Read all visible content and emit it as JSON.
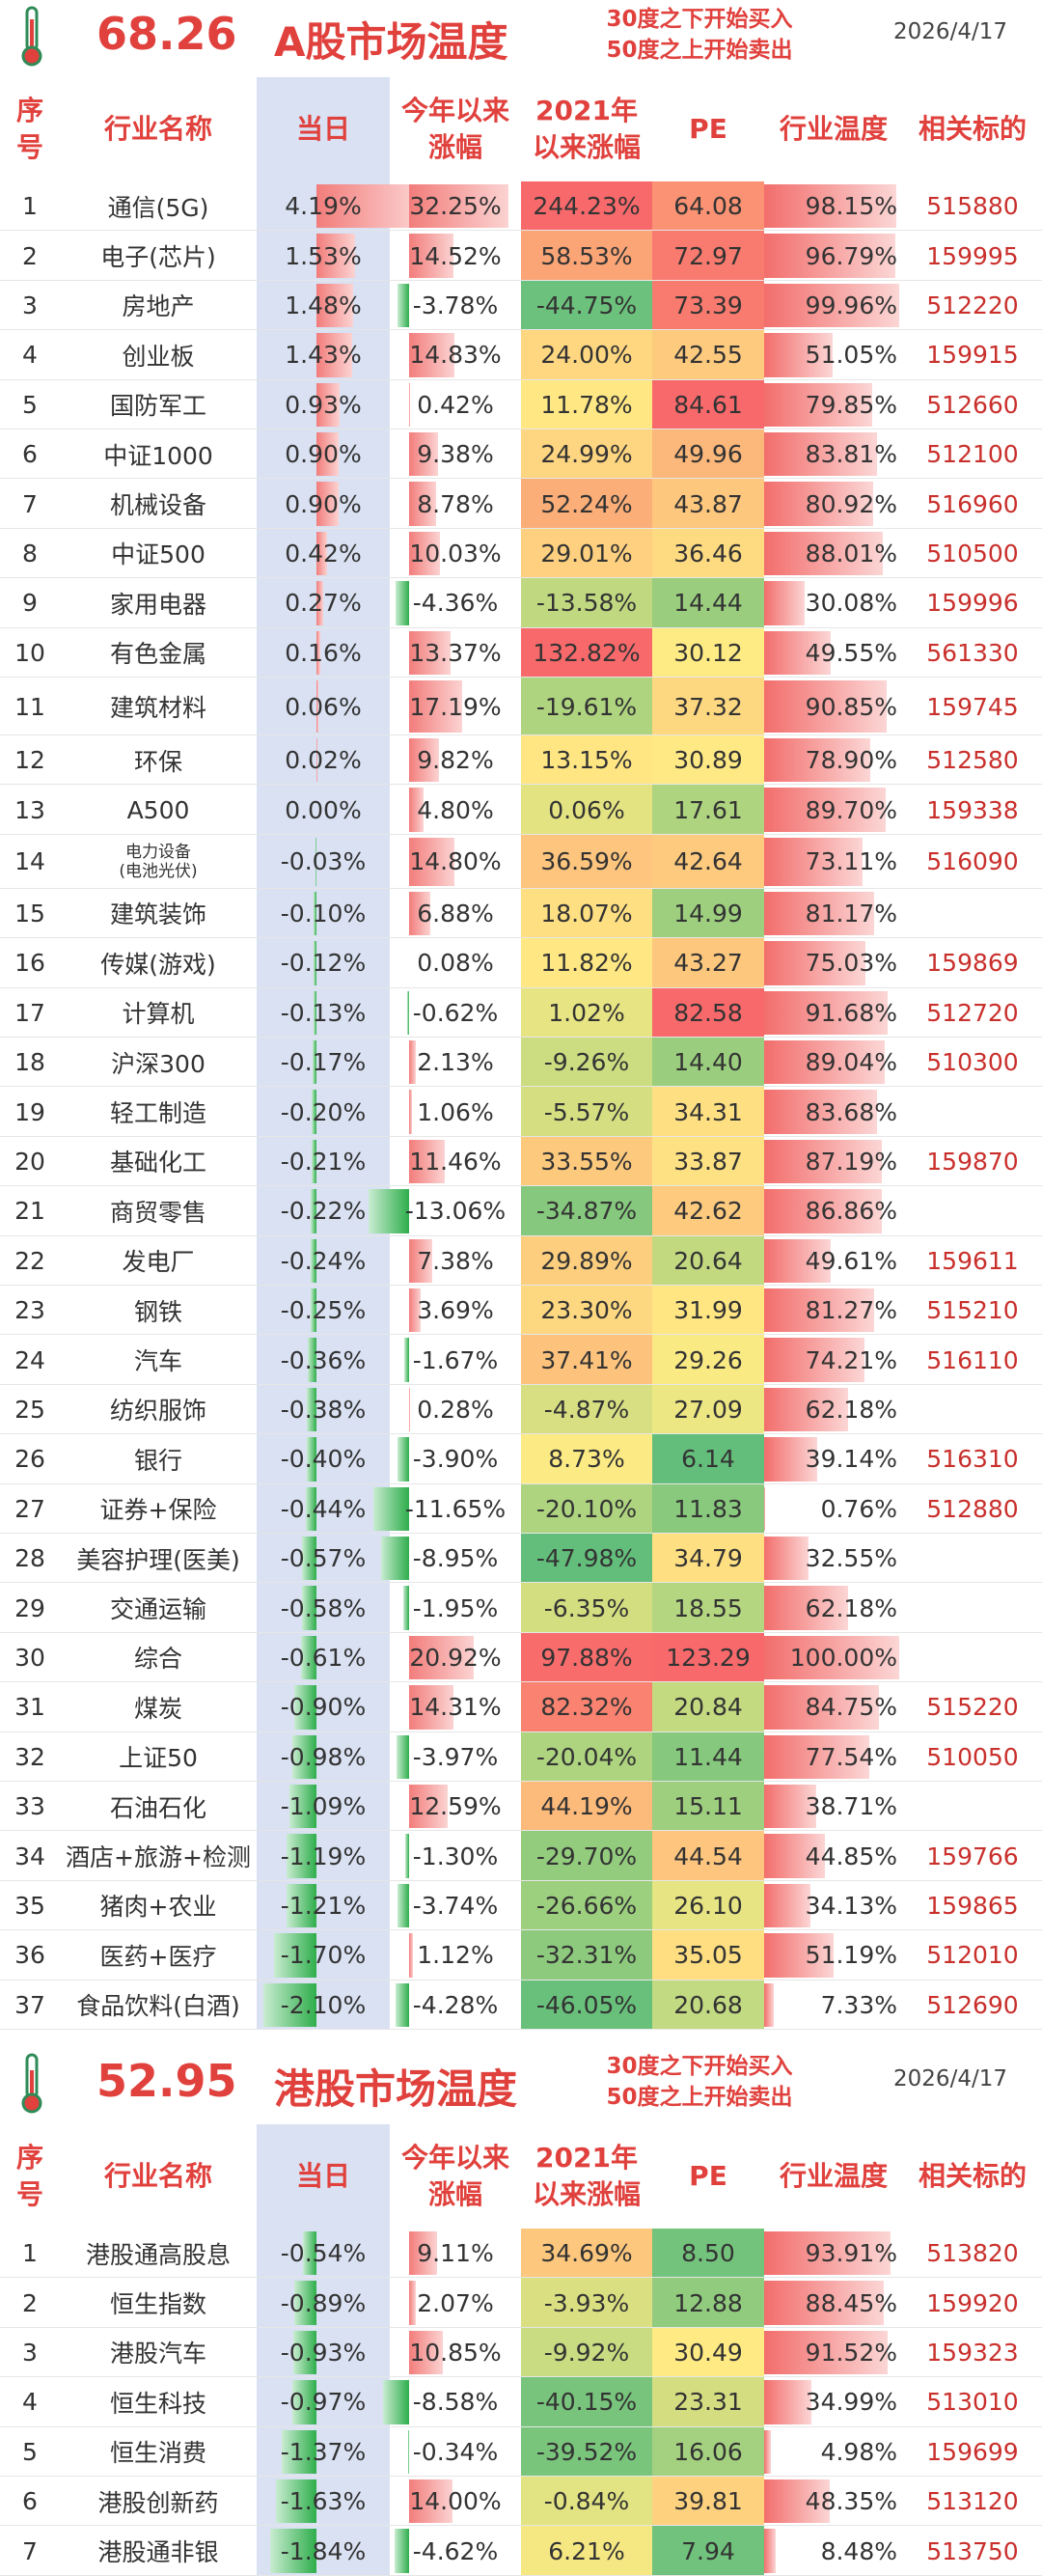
{
  "colors": {
    "accent": "#e0413d",
    "positive_bar": "#f08a88",
    "negative_bar": "#3cae4f",
    "code": "#c9302c",
    "today_col_bg": "#d9e1f2"
  },
  "headers": {
    "idx": "序号",
    "name": "行业名称",
    "today": "当日",
    "ytd": "今年以来涨幅",
    "since2021": "2021年以来涨幅",
    "pe": "PE",
    "temp": "行业温度",
    "code": "相关标的"
  },
  "a_market": {
    "score": "68.26",
    "title": "A股市场温度",
    "note_line1": "30度之下开始买入",
    "note_line2": "50度之上开始卖出",
    "date": "2026/4/17",
    "rows": [
      {
        "idx": "1",
        "name": "通信(5G)",
        "today": "4.19%",
        "ytd": "32.25%",
        "since2021": "244.23%",
        "pe": "64.08",
        "temp": "98.15%",
        "code": "515880",
        "today_v": 4.19,
        "ytd_v": 32.25,
        "s21_v": 244.23,
        "pe_v": 64.08,
        "temp_v": 98.15
      },
      {
        "idx": "2",
        "name": "电子(芯片)",
        "today": "1.53%",
        "ytd": "14.52%",
        "since2021": "58.53%",
        "pe": "72.97",
        "temp": "96.79%",
        "code": "159995",
        "today_v": 1.53,
        "ytd_v": 14.52,
        "s21_v": 58.53,
        "pe_v": 72.97,
        "temp_v": 96.79
      },
      {
        "idx": "3",
        "name": "房地产",
        "today": "1.48%",
        "ytd": "-3.78%",
        "since2021": "-44.75%",
        "pe": "73.39",
        "temp": "99.96%",
        "code": "512220",
        "today_v": 1.48,
        "ytd_v": -3.78,
        "s21_v": -44.75,
        "pe_v": 73.39,
        "temp_v": 99.96
      },
      {
        "idx": "4",
        "name": "创业板",
        "today": "1.43%",
        "ytd": "14.83%",
        "since2021": "24.00%",
        "pe": "42.55",
        "temp": "51.05%",
        "code": "159915",
        "today_v": 1.43,
        "ytd_v": 14.83,
        "s21_v": 24.0,
        "pe_v": 42.55,
        "temp_v": 51.05
      },
      {
        "idx": "5",
        "name": "国防军工",
        "today": "0.93%",
        "ytd": "0.42%",
        "since2021": "11.78%",
        "pe": "84.61",
        "temp": "79.85%",
        "code": "512660",
        "today_v": 0.93,
        "ytd_v": 0.42,
        "s21_v": 11.78,
        "pe_v": 84.61,
        "temp_v": 79.85
      },
      {
        "idx": "6",
        "name": "中证1000",
        "today": "0.90%",
        "ytd": "9.38%",
        "since2021": "24.99%",
        "pe": "49.96",
        "temp": "83.81%",
        "code": "512100",
        "today_v": 0.9,
        "ytd_v": 9.38,
        "s21_v": 24.99,
        "pe_v": 49.96,
        "temp_v": 83.81
      },
      {
        "idx": "7",
        "name": "机械设备",
        "today": "0.90%",
        "ytd": "8.78%",
        "since2021": "52.24%",
        "pe": "43.87",
        "temp": "80.92%",
        "code": "516960",
        "today_v": 0.9,
        "ytd_v": 8.78,
        "s21_v": 52.24,
        "pe_v": 43.87,
        "temp_v": 80.92
      },
      {
        "idx": "8",
        "name": "中证500",
        "today": "0.42%",
        "ytd": "10.03%",
        "since2021": "29.01%",
        "pe": "36.46",
        "temp": "88.01%",
        "code": "510500",
        "today_v": 0.42,
        "ytd_v": 10.03,
        "s21_v": 29.01,
        "pe_v": 36.46,
        "temp_v": 88.01
      },
      {
        "idx": "9",
        "name": "家用电器",
        "today": "0.27%",
        "ytd": "-4.36%",
        "since2021": "-13.58%",
        "pe": "14.44",
        "temp": "30.08%",
        "code": "159996",
        "today_v": 0.27,
        "ytd_v": -4.36,
        "s21_v": -13.58,
        "pe_v": 14.44,
        "temp_v": 30.08
      },
      {
        "idx": "10",
        "name": "有色金属",
        "today": "0.16%",
        "ytd": "13.37%",
        "since2021": "132.82%",
        "pe": "30.12",
        "temp": "49.55%",
        "code": "561330",
        "today_v": 0.16,
        "ytd_v": 13.37,
        "s21_v": 132.82,
        "pe_v": 30.12,
        "temp_v": 49.55
      },
      {
        "idx": "11",
        "name": "建筑材料",
        "today": "0.06%",
        "ytd": "17.19%",
        "since2021": "-19.61%",
        "pe": "37.32",
        "temp": "90.85%",
        "code": "159745",
        "today_v": 0.06,
        "ytd_v": 17.19,
        "s21_v": -19.61,
        "pe_v": 37.32,
        "temp_v": 90.85,
        "tall": true
      },
      {
        "idx": "12",
        "name": "环保",
        "today": "0.02%",
        "ytd": "9.82%",
        "since2021": "13.15%",
        "pe": "30.89",
        "temp": "78.90%",
        "code": "512580",
        "today_v": 0.02,
        "ytd_v": 9.82,
        "s21_v": 13.15,
        "pe_v": 30.89,
        "temp_v": 78.9
      },
      {
        "idx": "13",
        "name": "A500",
        "today": "0.00%",
        "ytd": "4.80%",
        "since2021": "0.06%",
        "pe": "17.61",
        "temp": "89.70%",
        "code": "159338",
        "today_v": 0.0,
        "ytd_v": 4.8,
        "s21_v": 0.06,
        "pe_v": 17.61,
        "temp_v": 89.7
      },
      {
        "idx": "14",
        "name": "电力设备\n(电池光伏)",
        "today": "-0.03%",
        "ytd": "14.80%",
        "since2021": "36.59%",
        "pe": "42.64",
        "temp": "73.11%",
        "code": "516090",
        "today_v": -0.03,
        "ytd_v": 14.8,
        "s21_v": 36.59,
        "pe_v": 42.64,
        "temp_v": 73.11,
        "small": true
      },
      {
        "idx": "15",
        "name": "建筑装饰",
        "today": "-0.10%",
        "ytd": "6.88%",
        "since2021": "18.07%",
        "pe": "14.99",
        "temp": "81.17%",
        "code": "",
        "today_v": -0.1,
        "ytd_v": 6.88,
        "s21_v": 18.07,
        "pe_v": 14.99,
        "temp_v": 81.17
      },
      {
        "idx": "16",
        "name": "传媒(游戏)",
        "today": "-0.12%",
        "ytd": "0.08%",
        "since2021": "11.82%",
        "pe": "43.27",
        "temp": "75.03%",
        "code": "159869",
        "today_v": -0.12,
        "ytd_v": 0.08,
        "s21_v": 11.82,
        "pe_v": 43.27,
        "temp_v": 75.03
      },
      {
        "idx": "17",
        "name": "计算机",
        "today": "-0.13%",
        "ytd": "-0.62%",
        "since2021": "1.02%",
        "pe": "82.58",
        "temp": "91.68%",
        "code": "512720",
        "today_v": -0.13,
        "ytd_v": -0.62,
        "s21_v": 1.02,
        "pe_v": 82.58,
        "temp_v": 91.68
      },
      {
        "idx": "18",
        "name": "沪深300",
        "today": "-0.17%",
        "ytd": "2.13%",
        "since2021": "-9.26%",
        "pe": "14.40",
        "temp": "89.04%",
        "code": "510300",
        "today_v": -0.17,
        "ytd_v": 2.13,
        "s21_v": -9.26,
        "pe_v": 14.4,
        "temp_v": 89.04
      },
      {
        "idx": "19",
        "name": "轻工制造",
        "today": "-0.20%",
        "ytd": "1.06%",
        "since2021": "-5.57%",
        "pe": "34.31",
        "temp": "83.68%",
        "code": "",
        "today_v": -0.2,
        "ytd_v": 1.06,
        "s21_v": -5.57,
        "pe_v": 34.31,
        "temp_v": 83.68
      },
      {
        "idx": "20",
        "name": "基础化工",
        "today": "-0.21%",
        "ytd": "11.46%",
        "since2021": "33.55%",
        "pe": "33.87",
        "temp": "87.19%",
        "code": "159870",
        "today_v": -0.21,
        "ytd_v": 11.46,
        "s21_v": 33.55,
        "pe_v": 33.87,
        "temp_v": 87.19
      },
      {
        "idx": "21",
        "name": "商贸零售",
        "today": "-0.22%",
        "ytd": "-13.06%",
        "since2021": "-34.87%",
        "pe": "42.62",
        "temp": "86.86%",
        "code": "",
        "today_v": -0.22,
        "ytd_v": -13.06,
        "s21_v": -34.87,
        "pe_v": 42.62,
        "temp_v": 86.86
      },
      {
        "idx": "22",
        "name": "发电厂",
        "today": "-0.24%",
        "ytd": "7.38%",
        "since2021": "29.89%",
        "pe": "20.64",
        "temp": "49.61%",
        "code": "159611",
        "today_v": -0.24,
        "ytd_v": 7.38,
        "s21_v": 29.89,
        "pe_v": 20.64,
        "temp_v": 49.61
      },
      {
        "idx": "23",
        "name": "钢铁",
        "today": "-0.25%",
        "ytd": "3.69%",
        "since2021": "23.30%",
        "pe": "31.99",
        "temp": "81.27%",
        "code": "515210",
        "today_v": -0.25,
        "ytd_v": 3.69,
        "s21_v": 23.3,
        "pe_v": 31.99,
        "temp_v": 81.27
      },
      {
        "idx": "24",
        "name": "汽车",
        "today": "-0.36%",
        "ytd": "-1.67%",
        "since2021": "37.41%",
        "pe": "29.26",
        "temp": "74.21%",
        "code": "516110",
        "today_v": -0.36,
        "ytd_v": -1.67,
        "s21_v": 37.41,
        "pe_v": 29.26,
        "temp_v": 74.21
      },
      {
        "idx": "25",
        "name": "纺织服饰",
        "today": "-0.38%",
        "ytd": "0.28%",
        "since2021": "-4.87%",
        "pe": "27.09",
        "temp": "62.18%",
        "code": "",
        "today_v": -0.38,
        "ytd_v": 0.28,
        "s21_v": -4.87,
        "pe_v": 27.09,
        "temp_v": 62.18
      },
      {
        "idx": "26",
        "name": "银行",
        "today": "-0.40%",
        "ytd": "-3.90%",
        "since2021": "8.73%",
        "pe": "6.14",
        "temp": "39.14%",
        "code": "516310",
        "today_v": -0.4,
        "ytd_v": -3.9,
        "s21_v": 8.73,
        "pe_v": 6.14,
        "temp_v": 39.14
      },
      {
        "idx": "27",
        "name": "证券+保险",
        "today": "-0.44%",
        "ytd": "-11.65%",
        "since2021": "-20.10%",
        "pe": "11.83",
        "temp": "0.76%",
        "code": "512880",
        "today_v": -0.44,
        "ytd_v": -11.65,
        "s21_v": -20.1,
        "pe_v": 11.83,
        "temp_v": 0.76
      },
      {
        "idx": "28",
        "name": "美容护理(医美)",
        "today": "-0.57%",
        "ytd": "-8.95%",
        "since2021": "-47.98%",
        "pe": "34.79",
        "temp": "32.55%",
        "code": "",
        "today_v": -0.57,
        "ytd_v": -8.95,
        "s21_v": -47.98,
        "pe_v": 34.79,
        "temp_v": 32.55
      },
      {
        "idx": "29",
        "name": "交通运输",
        "today": "-0.58%",
        "ytd": "-1.95%",
        "since2021": "-6.35%",
        "pe": "18.55",
        "temp": "62.18%",
        "code": "",
        "today_v": -0.58,
        "ytd_v": -1.95,
        "s21_v": -6.35,
        "pe_v": 18.55,
        "temp_v": 62.18
      },
      {
        "idx": "30",
        "name": "综合",
        "today": "-0.61%",
        "ytd": "20.92%",
        "since2021": "97.88%",
        "pe": "123.29",
        "temp": "100.00%",
        "code": "",
        "today_v": -0.61,
        "ytd_v": 20.92,
        "s21_v": 97.88,
        "pe_v": 123.29,
        "temp_v": 100.0
      },
      {
        "idx": "31",
        "name": "煤炭",
        "today": "-0.90%",
        "ytd": "14.31%",
        "since2021": "82.32%",
        "pe": "20.84",
        "temp": "84.75%",
        "code": "515220",
        "today_v": -0.9,
        "ytd_v": 14.31,
        "s21_v": 82.32,
        "pe_v": 20.84,
        "temp_v": 84.75
      },
      {
        "idx": "32",
        "name": "上证50",
        "today": "-0.98%",
        "ytd": "-3.97%",
        "since2021": "-20.04%",
        "pe": "11.44",
        "temp": "77.54%",
        "code": "510050",
        "today_v": -0.98,
        "ytd_v": -3.97,
        "s21_v": -20.04,
        "pe_v": 11.44,
        "temp_v": 77.54
      },
      {
        "idx": "33",
        "name": "石油石化",
        "today": "-1.09%",
        "ytd": "12.59%",
        "since2021": "44.19%",
        "pe": "15.11",
        "temp": "38.71%",
        "code": "",
        "today_v": -1.09,
        "ytd_v": 12.59,
        "s21_v": 44.19,
        "pe_v": 15.11,
        "temp_v": 38.71
      },
      {
        "idx": "34",
        "name": "酒店+旅游+检测",
        "today": "-1.19%",
        "ytd": "-1.30%",
        "since2021": "-29.70%",
        "pe": "44.54",
        "temp": "44.85%",
        "code": "159766",
        "today_v": -1.19,
        "ytd_v": -1.3,
        "s21_v": -29.7,
        "pe_v": 44.54,
        "temp_v": 44.85
      },
      {
        "idx": "35",
        "name": "猪肉+农业",
        "today": "-1.21%",
        "ytd": "-3.74%",
        "since2021": "-26.66%",
        "pe": "26.10",
        "temp": "34.13%",
        "code": "159865",
        "today_v": -1.21,
        "ytd_v": -3.74,
        "s21_v": -26.66,
        "pe_v": 26.1,
        "temp_v": 34.13
      },
      {
        "idx": "36",
        "name": "医药+医疗",
        "today": "-1.70%",
        "ytd": "1.12%",
        "since2021": "-32.31%",
        "pe": "35.05",
        "temp": "51.19%",
        "code": "512010",
        "today_v": -1.7,
        "ytd_v": 1.12,
        "s21_v": -32.31,
        "pe_v": 35.05,
        "temp_v": 51.19
      },
      {
        "idx": "37",
        "name": "食品饮料(白酒)",
        "today": "-2.10%",
        "ytd": "-4.28%",
        "since2021": "-46.05%",
        "pe": "20.68",
        "temp": "7.33%",
        "code": "512690",
        "today_v": -2.1,
        "ytd_v": -4.28,
        "s21_v": -46.05,
        "pe_v": 20.68,
        "temp_v": 7.33
      }
    ]
  },
  "hk_market": {
    "score": "52.95",
    "title": "港股市场温度",
    "note_line1": "30度之下开始买入",
    "note_line2": "50度之上开始卖出",
    "date": "2026/4/17",
    "rows": [
      {
        "idx": "1",
        "name": "港股通高股息",
        "today": "-0.54%",
        "ytd": "9.11%",
        "since2021": "34.69%",
        "pe": "8.50",
        "temp": "93.91%",
        "code": "513820",
        "today_v": -0.54,
        "ytd_v": 9.11,
        "s21_v": 34.69,
        "pe_v": 8.5,
        "temp_v": 93.91
      },
      {
        "idx": "2",
        "name": "恒生指数",
        "today": "-0.89%",
        "ytd": "2.07%",
        "since2021": "-3.93%",
        "pe": "12.88",
        "temp": "88.45%",
        "code": "159920",
        "today_v": -0.89,
        "ytd_v": 2.07,
        "s21_v": -3.93,
        "pe_v": 12.88,
        "temp_v": 88.45
      },
      {
        "idx": "3",
        "name": "港股汽车",
        "today": "-0.93%",
        "ytd": "10.85%",
        "since2021": "-9.92%",
        "pe": "30.49",
        "temp": "91.52%",
        "code": "159323",
        "today_v": -0.93,
        "ytd_v": 10.85,
        "s21_v": -9.92,
        "pe_v": 30.49,
        "temp_v": 91.52
      },
      {
        "idx": "4",
        "name": "恒生科技",
        "today": "-0.97%",
        "ytd": "-8.58%",
        "since2021": "-40.15%",
        "pe": "23.31",
        "temp": "34.99%",
        "code": "513010",
        "today_v": -0.97,
        "ytd_v": -8.58,
        "s21_v": -40.15,
        "pe_v": 23.31,
        "temp_v": 34.99
      },
      {
        "idx": "5",
        "name": "恒生消费",
        "today": "-1.37%",
        "ytd": "-0.34%",
        "since2021": "-39.52%",
        "pe": "16.06",
        "temp": "4.98%",
        "code": "159699",
        "today_v": -1.37,
        "ytd_v": -0.34,
        "s21_v": -39.52,
        "pe_v": 16.06,
        "temp_v": 4.98
      },
      {
        "idx": "6",
        "name": "港股创新药",
        "today": "-1.63%",
        "ytd": "14.00%",
        "since2021": "-0.84%",
        "pe": "39.81",
        "temp": "48.35%",
        "code": "513120",
        "today_v": -1.63,
        "ytd_v": 14.0,
        "s21_v": -0.84,
        "pe_v": 39.81,
        "temp_v": 48.35
      },
      {
        "idx": "7",
        "name": "港股通非银",
        "today": "-1.84%",
        "ytd": "-4.62%",
        "since2021": "6.21%",
        "pe": "7.94",
        "temp": "8.48%",
        "code": "513750",
        "today_v": -1.84,
        "ytd_v": -4.62,
        "s21_v": 6.21,
        "pe_v": 7.94,
        "temp_v": 8.48
      }
    ]
  }
}
